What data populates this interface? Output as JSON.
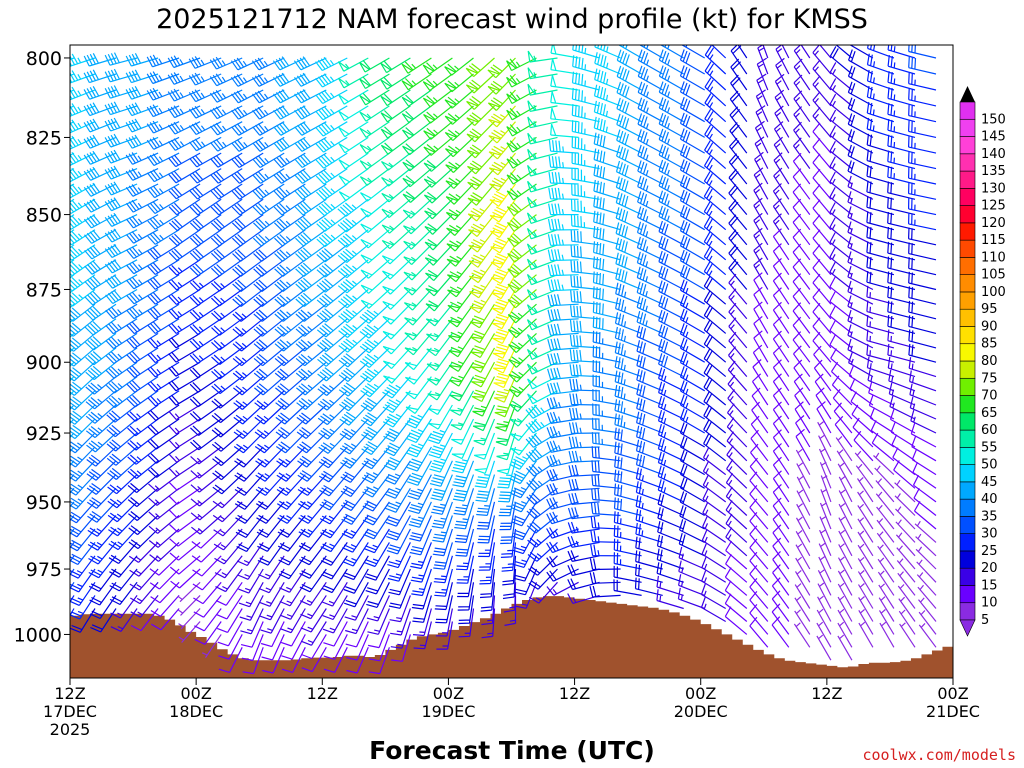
{
  "chart_data": {
    "type": "wind-barb-time-height",
    "title": "2025121712 NAM forecast wind profile (kt) for KMSS",
    "xlabel": "Forecast Time (UTC)",
    "ylabel": "",
    "credit": "coolwx.com/models",
    "y_axis": {
      "quantity": "pressure (hPa)",
      "range": [
        1017,
        796
      ],
      "inverted": true,
      "ticks": [
        800,
        825,
        850,
        875,
        900,
        925,
        950,
        975,
        1000
      ]
    },
    "x_axis": {
      "range_hours": [
        0,
        84
      ],
      "ticks": [
        {
          "hour": 0,
          "l1": "12Z",
          "l2": "17DEC",
          "l3": "2025"
        },
        {
          "hour": 12,
          "l1": "00Z",
          "l2": "18DEC",
          "l3": ""
        },
        {
          "hour": 24,
          "l1": "12Z",
          "l2": "",
          "l3": ""
        },
        {
          "hour": 36,
          "l1": "00Z",
          "l2": "19DEC",
          "l3": ""
        },
        {
          "hour": 48,
          "l1": "12Z",
          "l2": "",
          "l3": ""
        },
        {
          "hour": 60,
          "l1": "00Z",
          "l2": "20DEC",
          "l3": ""
        },
        {
          "hour": 72,
          "l1": "12Z",
          "l2": "",
          "l3": ""
        },
        {
          "hour": 84,
          "l1": "00Z",
          "l2": "21DEC",
          "l3": ""
        }
      ]
    },
    "colorbar": {
      "unit": "kt",
      "levels": [
        5,
        10,
        15,
        20,
        25,
        30,
        35,
        40,
        45,
        50,
        55,
        60,
        65,
        70,
        75,
        80,
        85,
        90,
        95,
        100,
        105,
        110,
        115,
        120,
        125,
        130,
        135,
        140,
        145,
        150
      ],
      "colors": [
        "#8a2be2",
        "#6a00ff",
        "#3a00e6",
        "#0000dd",
        "#0020ff",
        "#0050ff",
        "#007cff",
        "#00a8ff",
        "#00d2ff",
        "#00f0e0",
        "#00f0a8",
        "#00e868",
        "#20e820",
        "#70f000",
        "#c8f000",
        "#f8f800",
        "#ffe000",
        "#ffc000",
        "#ffa000",
        "#ff8c00",
        "#ff6e00",
        "#ff4a00",
        "#ff1a00",
        "#ff0030",
        "#ff0060",
        "#ff1a88",
        "#ff30b0",
        "#ff40d8",
        "#f040f0",
        "#e030f0"
      ]
    },
    "terrain": {
      "color": "#a0522d",
      "surface_pressure": [
        {
          "hour": 0,
          "p": 993
        },
        {
          "hour": 2,
          "p": 992
        },
        {
          "hour": 4,
          "p": 992
        },
        {
          "hour": 8,
          "p": 992
        },
        {
          "hour": 10,
          "p": 995
        },
        {
          "hour": 11,
          "p": 998
        },
        {
          "hour": 13,
          "p": 1002
        },
        {
          "hour": 15,
          "p": 1007
        },
        {
          "hour": 17,
          "p": 1010
        },
        {
          "hour": 19,
          "p": 1010
        },
        {
          "hour": 21,
          "p": 1010
        },
        {
          "hour": 23,
          "p": 1009
        },
        {
          "hour": 25,
          "p": 1009
        },
        {
          "hour": 27,
          "p": 1008
        },
        {
          "hour": 29,
          "p": 1009
        },
        {
          "hour": 31,
          "p": 1005
        },
        {
          "hour": 33,
          "p": 1001
        },
        {
          "hour": 36,
          "p": 999
        },
        {
          "hour": 38,
          "p": 996
        },
        {
          "hour": 40,
          "p": 993
        },
        {
          "hour": 42,
          "p": 989
        },
        {
          "hour": 44,
          "p": 986
        },
        {
          "hour": 46,
          "p": 985
        },
        {
          "hour": 48,
          "p": 986
        },
        {
          "hour": 50,
          "p": 987
        },
        {
          "hour": 52,
          "p": 988
        },
        {
          "hour": 54,
          "p": 989
        },
        {
          "hour": 56,
          "p": 990
        },
        {
          "hour": 58,
          "p": 992
        },
        {
          "hour": 60,
          "p": 995
        },
        {
          "hour": 62,
          "p": 999
        },
        {
          "hour": 64,
          "p": 1003
        },
        {
          "hour": 66,
          "p": 1007
        },
        {
          "hour": 68,
          "p": 1010
        },
        {
          "hour": 70,
          "p": 1011
        },
        {
          "hour": 72,
          "p": 1012
        },
        {
          "hour": 74,
          "p": 1013
        },
        {
          "hour": 76,
          "p": 1011
        },
        {
          "hour": 78,
          "p": 1011
        },
        {
          "hour": 80,
          "p": 1010
        },
        {
          "hour": 82,
          "p": 1007
        },
        {
          "hour": 84,
          "p": 1004
        }
      ]
    },
    "pressure_levels": [
      800,
      805,
      810,
      815,
      820,
      825,
      830,
      835,
      840,
      845,
      850,
      855,
      860,
      865,
      870,
      875,
      880,
      885,
      890,
      895,
      900,
      905,
      910,
      915,
      920,
      925,
      930,
      935,
      940,
      945,
      950,
      955,
      960,
      965,
      970,
      975,
      980,
      985,
      990,
      995,
      1000,
      1005,
      1010
    ],
    "wind_field": [
      {
        "hour": 0,
        "profile": [
          {
            "p": 800,
            "dir": 250,
            "spd": 45
          },
          {
            "p": 850,
            "dir": 235,
            "spd": 45
          },
          {
            "p": 900,
            "dir": 225,
            "spd": 45
          },
          {
            "p": 950,
            "dir": 220,
            "spd": 35
          },
          {
            "p": 990,
            "dir": 210,
            "spd": 25
          }
        ]
      },
      {
        "hour": 6,
        "profile": [
          {
            "p": 800,
            "dir": 255,
            "spd": 40
          },
          {
            "p": 850,
            "dir": 245,
            "spd": 40
          },
          {
            "p": 900,
            "dir": 235,
            "spd": 35
          },
          {
            "p": 950,
            "dir": 225,
            "spd": 25
          },
          {
            "p": 990,
            "dir": 215,
            "spd": 15
          }
        ]
      },
      {
        "hour": 12,
        "profile": [
          {
            "p": 800,
            "dir": 250,
            "spd": 35
          },
          {
            "p": 850,
            "dir": 235,
            "spd": 30
          },
          {
            "p": 900,
            "dir": 240,
            "spd": 20
          },
          {
            "p": 950,
            "dir": 235,
            "spd": 10
          },
          {
            "p": 1000,
            "dir": 220,
            "spd": 5
          }
        ]
      },
      {
        "hour": 18,
        "profile": [
          {
            "p": 800,
            "dir": 245,
            "spd": 35
          },
          {
            "p": 850,
            "dir": 235,
            "spd": 30
          },
          {
            "p": 900,
            "dir": 230,
            "spd": 25
          },
          {
            "p": 950,
            "dir": 220,
            "spd": 20
          },
          {
            "p": 1005,
            "dir": 200,
            "spd": 10
          }
        ]
      },
      {
        "hour": 24,
        "profile": [
          {
            "p": 800,
            "dir": 245,
            "spd": 40
          },
          {
            "p": 850,
            "dir": 235,
            "spd": 40
          },
          {
            "p": 900,
            "dir": 230,
            "spd": 35
          },
          {
            "p": 950,
            "dir": 220,
            "spd": 25
          },
          {
            "p": 1005,
            "dir": 210,
            "spd": 10
          }
        ]
      },
      {
        "hour": 30,
        "profile": [
          {
            "p": 800,
            "dir": 240,
            "spd": 60
          },
          {
            "p": 850,
            "dir": 230,
            "spd": 50
          },
          {
            "p": 900,
            "dir": 225,
            "spd": 45
          },
          {
            "p": 950,
            "dir": 215,
            "spd": 30
          },
          {
            "p": 1000,
            "dir": 200,
            "spd": 10
          }
        ]
      },
      {
        "hour": 36,
        "profile": [
          {
            "p": 800,
            "dir": 235,
            "spd": 65
          },
          {
            "p": 850,
            "dir": 225,
            "spd": 60
          },
          {
            "p": 900,
            "dir": 215,
            "spd": 55
          },
          {
            "p": 950,
            "dir": 200,
            "spd": 35
          },
          {
            "p": 995,
            "dir": 190,
            "spd": 15
          }
        ]
      },
      {
        "hour": 42,
        "profile": [
          {
            "p": 800,
            "dir": 225,
            "spd": 70
          },
          {
            "p": 850,
            "dir": 215,
            "spd": 80
          },
          {
            "p": 900,
            "dir": 205,
            "spd": 80
          },
          {
            "p": 950,
            "dir": 190,
            "spd": 30
          },
          {
            "p": 985,
            "dir": 180,
            "spd": 15
          }
        ]
      },
      {
        "hour": 48,
        "profile": [
          {
            "p": 800,
            "dir": 280,
            "spd": 50
          },
          {
            "p": 850,
            "dir": 270,
            "spd": 45
          },
          {
            "p": 900,
            "dir": 265,
            "spd": 40
          },
          {
            "p": 950,
            "dir": 255,
            "spd": 30
          },
          {
            "p": 985,
            "dir": 240,
            "spd": 15
          }
        ]
      },
      {
        "hour": 54,
        "profile": [
          {
            "p": 800,
            "dir": 300,
            "spd": 40
          },
          {
            "p": 850,
            "dir": 295,
            "spd": 40
          },
          {
            "p": 900,
            "dir": 290,
            "spd": 35
          },
          {
            "p": 950,
            "dir": 285,
            "spd": 30
          },
          {
            "p": 985,
            "dir": 280,
            "spd": 20
          }
        ]
      },
      {
        "hour": 60,
        "profile": [
          {
            "p": 800,
            "dir": 300,
            "spd": 30
          },
          {
            "p": 850,
            "dir": 300,
            "spd": 30
          },
          {
            "p": 900,
            "dir": 300,
            "spd": 25
          },
          {
            "p": 950,
            "dir": 300,
            "spd": 20
          },
          {
            "p": 990,
            "dir": 290,
            "spd": 15
          }
        ]
      },
      {
        "hour": 66,
        "profile": [
          {
            "p": 800,
            "dir": 340,
            "spd": 15
          },
          {
            "p": 850,
            "dir": 330,
            "spd": 15
          },
          {
            "p": 900,
            "dir": 330,
            "spd": 10
          },
          {
            "p": 950,
            "dir": 320,
            "spd": 10
          },
          {
            "p": 1000,
            "dir": 320,
            "spd": 10
          }
        ]
      },
      {
        "hour": 72,
        "profile": [
          {
            "p": 800,
            "dir": 320,
            "spd": 15
          },
          {
            "p": 850,
            "dir": 320,
            "spd": 10
          },
          {
            "p": 900,
            "dir": 320,
            "spd": 10
          },
          {
            "p": 950,
            "dir": 340,
            "spd": 5
          },
          {
            "p": 1005,
            "dir": 330,
            "spd": 5
          }
        ]
      },
      {
        "hour": 78,
        "profile": [
          {
            "p": 800,
            "dir": 290,
            "spd": 25
          },
          {
            "p": 850,
            "dir": 285,
            "spd": 20
          },
          {
            "p": 900,
            "dir": 285,
            "spd": 15
          },
          {
            "p": 950,
            "dir": 320,
            "spd": 5
          },
          {
            "p": 1005,
            "dir": 330,
            "spd": 5
          }
        ]
      },
      {
        "hour": 84,
        "profile": [
          {
            "p": 800,
            "dir": 280,
            "spd": 30
          },
          {
            "p": 850,
            "dir": 280,
            "spd": 25
          },
          {
            "p": 900,
            "dir": 285,
            "spd": 20
          },
          {
            "p": 950,
            "dir": 300,
            "spd": 10
          },
          {
            "p": 1000,
            "dir": 320,
            "spd": 5
          }
        ]
      }
    ]
  }
}
